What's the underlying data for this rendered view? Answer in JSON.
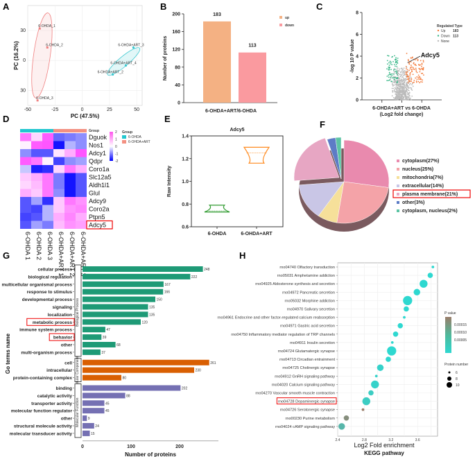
{
  "panel_labels": [
    "A",
    "B",
    "C",
    "D",
    "E",
    "F",
    "G",
    "H"
  ],
  "chart_data": [
    {
      "panel": "A",
      "type": "scatter",
      "title": "",
      "xlabel": "PC (47.5%)",
      "ylabel": "PC (16.2%)",
      "xlim": [
        -50,
        55
      ],
      "ylim": [
        -45,
        55
      ],
      "xticks": [
        -50,
        -25,
        0,
        25,
        50
      ],
      "yticks": [
        {
          "v": 30,
          "label": "30"
        },
        {
          "v": 0,
          "label": "0"
        },
        {
          "v": -30,
          "label": "30"
        }
      ],
      "grid": true,
      "series": [
        {
          "name": "6-OHDA",
          "color": "#f08080",
          "points": [
            {
              "label": "6-OHDA_1",
              "x": -39,
              "y": 32
            },
            {
              "label": "6-OHDA_2",
              "x": -32,
              "y": 13
            },
            {
              "label": "6-OHDA_3",
              "x": -41,
              "y": -40
            }
          ]
        },
        {
          "name": "6-OHDA+ART",
          "color": "#3cc8d0",
          "points": [
            {
              "label": "6-OHDA+ART_3",
              "x": 47,
              "y": 13
            },
            {
              "label": "6-OHDA+ART_4",
              "x": 40,
              "y": -5
            },
            {
              "label": "6-OHDA+ART_2",
              "x": 28,
              "y": -14
            }
          ]
        }
      ]
    },
    {
      "panel": "B",
      "type": "bar",
      "categories": [
        "up",
        "down"
      ],
      "values": [
        183,
        113
      ],
      "colors": [
        "#f4b183",
        "#fa9a9f"
      ],
      "xlabel": "6-OHDA+ART/6-OHDA",
      "ylabel": "Number of proteins",
      "ylim": [
        0,
        200
      ],
      "yticks": [
        0,
        40,
        80,
        120,
        160,
        200
      ],
      "legend": [
        {
          "label": "up",
          "color": "#f4b183"
        },
        {
          "label": "down",
          "color": "#fa9a9f"
        }
      ],
      "legend_position": "top-right"
    },
    {
      "panel": "C",
      "type": "scatter",
      "title": "",
      "xlabel": "6-OHDA+ART vs 6-OHDA",
      "xlabel2": "(Log2 fold change)",
      "ylabel": "-log 10 P value",
      "ylim": [
        0,
        8
      ],
      "yticks": [
        0,
        2,
        4,
        6,
        8
      ],
      "xlim": [
        -2,
        2
      ],
      "xticks": [
        -1,
        0,
        1
      ],
      "annotation": "Adcy5",
      "legend_title": "Regulated Type",
      "legend": [
        {
          "label": "Up",
          "count": "183",
          "color": "#f47c3c"
        },
        {
          "label": "Down",
          "count": "113",
          "color": "#3cb88a"
        },
        {
          "label": "None",
          "count": "",
          "color": "#bbbbbb"
        }
      ],
      "legend_position": "top-right"
    },
    {
      "panel": "D",
      "type": "heatmap",
      "columns": [
        "6-OHDA 1",
        "6-OHDA 2",
        "6-OHDA 3",
        "6-OHDA+ART 1",
        "6-OHDA+ART 2",
        "6-OHDA+ART 3"
      ],
      "column_groups": [
        "6-OHDA",
        "6-OHDA",
        "6-OHDA",
        "6-OHDA+ART",
        "6-OHDA+ART",
        "6-OHDA+ART"
      ],
      "rows": [
        "Dguok",
        "Nos1",
        "Adcy1",
        "Qdpr",
        "Coro1a",
        "Slc12a5",
        "Aldh1l1",
        "Glul",
        "Adcy9",
        "Coro2a",
        "Ptpn5",
        "Adcy5"
      ],
      "highlight_row": "Adcy5",
      "values": [
        [
          1.0,
          0.3,
          1.2,
          -0.8,
          -0.7,
          -0.6
        ],
        [
          0.1,
          1.2,
          1.3,
          -1.3,
          -0.4,
          -0.6
        ],
        [
          -0.6,
          -0.9,
          -0.9,
          0.2,
          0.6,
          1.4
        ],
        [
          1.2,
          1.0,
          0.1,
          -1.0,
          -0.6,
          -0.5
        ],
        [
          -0.3,
          -1.2,
          -1.1,
          0.3,
          1.0,
          0.6
        ],
        [
          0.4,
          0.6,
          1.0,
          -0.7,
          -1.3,
          -0.9
        ],
        [
          0.3,
          0.5,
          1.0,
          -0.7,
          -1.3,
          -0.9
        ],
        [
          0.6,
          0.4,
          1.0,
          -0.6,
          -1.3,
          -0.9
        ],
        [
          -0.9,
          -0.5,
          -1.1,
          0.4,
          1.0,
          0.8
        ],
        [
          -0.9,
          -1.0,
          -0.4,
          0.4,
          0.8,
          0.9
        ],
        [
          -1.0,
          -0.9,
          -0.4,
          0.6,
          0.9,
          0.6
        ],
        [
          -0.9,
          -0.5,
          -0.7,
          0.5,
          0.8,
          0.7
        ]
      ],
      "scale": {
        "min": -2,
        "max": 2,
        "ticks": [
          2,
          1,
          0,
          -1,
          -2
        ]
      },
      "legend_title": "Group",
      "legend": [
        {
          "label": "6-OHDA",
          "color": "#22c7cf"
        },
        {
          "label": "6-OHDA+ART",
          "color": "#f39082"
        }
      ],
      "row_header": "Group"
    },
    {
      "panel": "E",
      "type": "violin",
      "title": "Adcy5",
      "ylabel": "Raw Intensity",
      "categories": [
        "6-OHDA",
        "6-OHDA+ART"
      ],
      "ranges": [
        [
          0.73,
          0.79
        ],
        [
          1.16,
          1.3
        ]
      ],
      "medians": [
        0.74,
        1.25
      ],
      "colors": [
        "#2e9a2e",
        "#ff8a1f"
      ],
      "ylim": [
        0.6,
        1.4
      ],
      "yticks": [
        0.6,
        0.8,
        1.0,
        1.2,
        1.4
      ]
    },
    {
      "panel": "F",
      "type": "pie",
      "categories": [
        "cytoplasm(27%)",
        "nucleus(25%)",
        "mitochondria(7%)",
        "extracellular(14%)",
        "plasma membrane(21%)",
        "other(3%)",
        "cytoplasm, nucleus(2%)"
      ],
      "values": [
        27,
        25,
        7,
        14,
        21,
        3,
        2
      ],
      "colors": [
        "#e98aae",
        "#f4a3a8",
        "#f6e09a",
        "#c9c6e6",
        "#e7a6c3",
        "#5d7cc6",
        "#5cc4a4"
      ],
      "highlight": "plasma membrane(21%)",
      "legend_position": "right"
    },
    {
      "panel": "G",
      "type": "bar",
      "orientation": "horizontal",
      "xlabel": "Number of proteins",
      "ylabel": "Go terms name",
      "xlim": [
        0,
        280
      ],
      "xticks": [
        0,
        100,
        200
      ],
      "highlighted": [
        "metabolic process",
        "behavior"
      ],
      "groups": [
        {
          "name": "Biological Process",
          "color": "#1e9a76",
          "categories": [
            "cellular process",
            "biological regulation",
            "multicellular organismal process",
            "response to stimulus",
            "developmental process",
            "signaling",
            "localization",
            "metabolic process",
            "immune system process",
            "behavior",
            "other",
            "multi-organism process"
          ],
          "values": [
            248,
            222,
            167,
            166,
            150,
            135,
            135,
            120,
            47,
            39,
            68,
            37
          ]
        },
        {
          "name": "Cellular Component",
          "color": "#d95f02",
          "categories": [
            "cell",
            "intracellular",
            "protein-containing complex"
          ],
          "values": [
            261,
            230,
            80
          ]
        },
        {
          "name": "Molecular Function",
          "color": "#7570b3",
          "categories": [
            "binding",
            "catalytic activity",
            "transporter activity",
            "molecular function regulator",
            "other",
            "structural molecule activity",
            "molecular transducer activity"
          ],
          "values": [
            202,
            88,
            45,
            45,
            9,
            24,
            15
          ]
        }
      ]
    },
    {
      "panel": "H",
      "type": "scatter",
      "subtype": "bubble",
      "xlabel": "Log2 Fold enrichment",
      "title_bottom": "KEGG pathway",
      "xlim": [
        2.4,
        3.9
      ],
      "xticks": [
        2.4,
        2.8,
        3.2,
        3.6
      ],
      "highlight": "rno04728 Dopaminergic synapse",
      "pathways": [
        {
          "name": "rno04740 Olfactory transduction",
          "x": 3.83,
          "size": 6,
          "p": 2e-05
        },
        {
          "name": "rno05031 Amphetamine addiction",
          "x": 3.79,
          "size": 8,
          "p": 2e-05
        },
        {
          "name": "rno04925 Aldosterone synthesis and secretion",
          "x": 3.69,
          "size": 10,
          "p": 2e-05
        },
        {
          "name": "rno04972 Pancreatic secretion",
          "x": 3.59,
          "size": 9,
          "p": 2e-05
        },
        {
          "name": "rno05032 Morphine addiction",
          "x": 3.45,
          "size": 11,
          "p": 2e-05
        },
        {
          "name": "rno04970 Salivary secretion",
          "x": 3.43,
          "size": 8,
          "p": 2e-05
        },
        {
          "name": "rno04961 Endocrine and other factor-regulated calcium reabsorption",
          "x": 3.4,
          "size": 6,
          "p": 2e-05
        },
        {
          "name": "rno04971 Gastric acid secretion",
          "x": 3.34,
          "size": 8,
          "p": 2e-05
        },
        {
          "name": "rno04750 Inflammatory mediator regulation of TRP channels",
          "x": 3.27,
          "size": 8,
          "p": 2e-05
        },
        {
          "name": "rno04911 Insulin secretion",
          "x": 3.22,
          "size": 6,
          "p": 2e-05
        },
        {
          "name": "rno04724 Glutamatergic synapse",
          "x": 3.21,
          "size": 11,
          "p": 2e-05
        },
        {
          "name": "rno04713 Circadian entrainment",
          "x": 3.16,
          "size": 8,
          "p": 2e-05
        },
        {
          "name": "rno04725 Cholinergic synapse",
          "x": 3.04,
          "size": 9,
          "p": 3e-05
        },
        {
          "name": "rno04912 GnRH signaling pathway",
          "x": 2.98,
          "size": 6,
          "p": 3e-05
        },
        {
          "name": "rno04020 Calcium signaling pathway",
          "x": 2.96,
          "size": 10,
          "p": 3e-05
        },
        {
          "name": "rno04270 Vascular smooth muscle contraction",
          "x": 2.9,
          "size": 8,
          "p": 4e-05
        },
        {
          "name": "rno04728 Dopaminergic synapse",
          "x": 2.83,
          "size": 10,
          "p": 4e-05
        },
        {
          "name": "rno04726 Serotonergic synapse",
          "x": 2.78,
          "size": 6,
          "p": 0.00018
        },
        {
          "name": "rno00230 Purine metabolism",
          "x": 2.53,
          "size": 8,
          "p": 0.00015
        },
        {
          "name": "rno04024 cAMP signaling pathway",
          "x": 2.46,
          "size": 9,
          "p": 8e-05
        }
      ],
      "color_legend": {
        "title": "P value",
        "ticks": [
          "0.00015",
          "0.00010",
          "0.00005"
        ],
        "low_color": "#2ed8d0",
        "high_color": "#9a7d6a"
      },
      "size_legend": {
        "title": "Protein number",
        "values": [
          6,
          8,
          10
        ]
      }
    }
  ]
}
